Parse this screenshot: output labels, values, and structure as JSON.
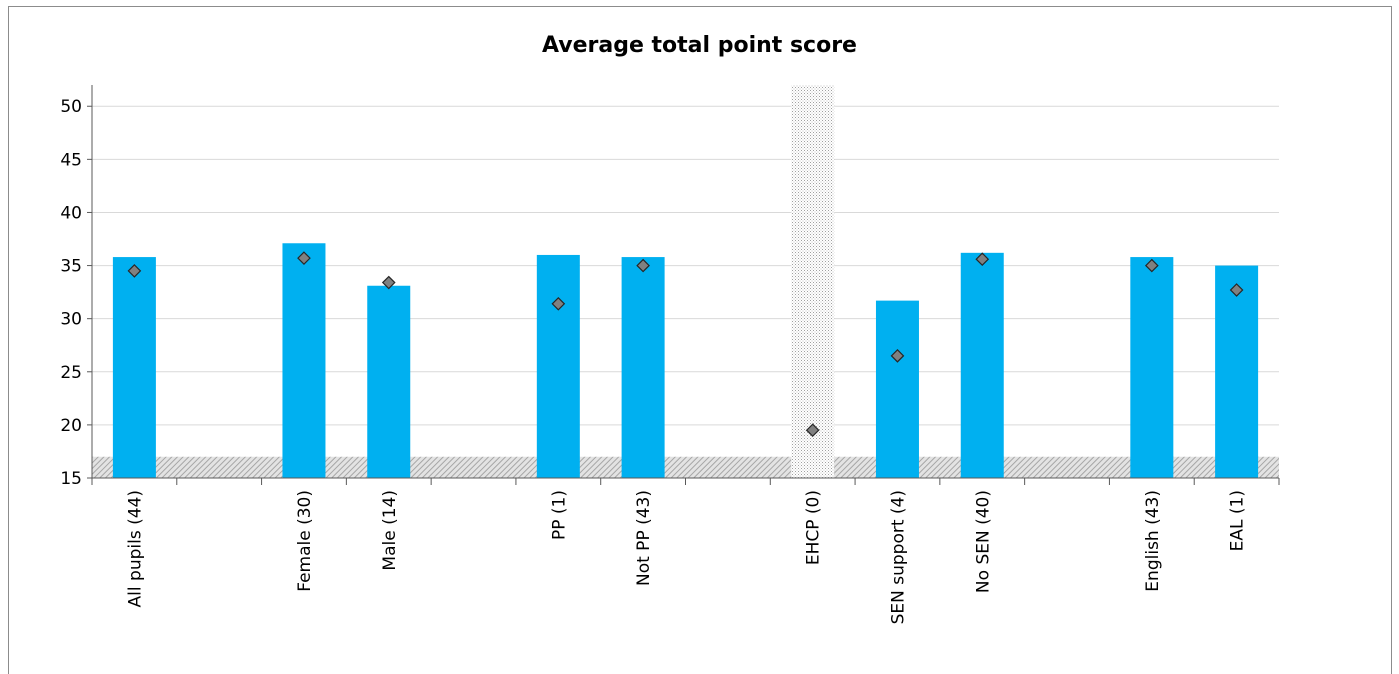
{
  "chart_data": {
    "type": "bar",
    "title": "Average total point score",
    "xlabel": "",
    "ylabel": "",
    "ylim": [
      15,
      52
    ],
    "yticks": [
      15,
      20,
      25,
      30,
      35,
      40,
      45,
      50
    ],
    "grid": true,
    "legend": "none",
    "slots": [
      "All pupils (44)",
      "",
      "Female (30)",
      "Male (14)",
      "",
      "PP (1)",
      "Not PP (43)",
      "",
      "EHCP (0)",
      "SEN support (4)",
      "No SEN (40)",
      "",
      "English (43)",
      "EAL (1)"
    ],
    "categories": [
      "All pupils (44)",
      "Female (30)",
      "Male (14)",
      "PP (1)",
      "Not PP (43)",
      "EHCP (0)",
      "SEN support (4)",
      "No SEN (40)",
      "English (43)",
      "EAL (1)"
    ],
    "series": [
      {
        "name": "",
        "kind": "bar",
        "color": "#00b0f0",
        "values": [
          35.8,
          37.1,
          33.1,
          36.0,
          35.8,
          null,
          31.7,
          36.2,
          35.8,
          35.0
        ]
      },
      {
        "name": "",
        "kind": "marker",
        "marker": "diamond",
        "color": "#808080",
        "values": [
          34.5,
          35.7,
          33.4,
          31.4,
          35.0,
          19.5,
          26.5,
          35.6,
          35.0,
          32.7
        ]
      }
    ],
    "baseline_band": {
      "color": "#bdbdbd",
      "top": 17,
      "bottom": 15
    },
    "highlight_category": "EHCP (0)"
  }
}
